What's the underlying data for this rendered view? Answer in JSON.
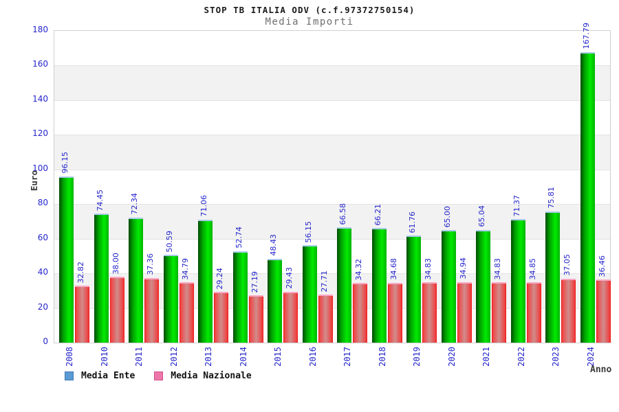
{
  "title": "STOP TB ITALIA ODV (c.f.97372750154)",
  "subtitle": "Media Importi",
  "chart_data": {
    "type": "bar",
    "title": "STOP TB ITALIA ODV (c.f.97372750154)",
    "subtitle": "Media Importi",
    "xlabel": "Anno",
    "ylabel": "Euro",
    "ylim": [
      0,
      180
    ],
    "y_ticks": [
      180,
      160,
      140,
      120,
      100,
      80,
      60,
      40,
      20,
      0
    ],
    "grid": "alternating-horizontal-bands-every-20",
    "legend_position": "bottom-left",
    "categories": [
      "2008",
      "2010",
      "2011",
      "2012",
      "2013",
      "2014",
      "2015",
      "2016",
      "2017",
      "2018",
      "2019",
      "2020",
      "2021",
      "2022",
      "2023",
      "2024"
    ],
    "series": [
      {
        "name": "Media Ente",
        "bar_color": "green-gradient",
        "legend_swatch_color": "#5b9bd5",
        "values": [
          96.15,
          74.45,
          72.34,
          50.59,
          71.06,
          52.74,
          48.43,
          56.15,
          66.58,
          66.21,
          61.76,
          65.0,
          65.04,
          71.37,
          75.81,
          167.79
        ]
      },
      {
        "name": "Media Nazionale",
        "bar_color": "red-gradient",
        "legend_swatch_color": "#ee77aa",
        "values": [
          32.82,
          38.0,
          37.36,
          34.79,
          29.24,
          27.19,
          29.43,
          27.71,
          34.32,
          34.68,
          34.83,
          34.94,
          34.83,
          34.85,
          37.05,
          36.46
        ]
      }
    ]
  },
  "colors": {
    "tick_label_blue": "#2424cc",
    "band_gray": "#f2f2f2",
    "plot_border": "#cfcfcf",
    "bar_green_dark": "#004b00",
    "bar_green_bright": "#00ea00",
    "bar_green_cap": "#a9cbe9",
    "bar_red": "#ea1212",
    "bar_red_center": "#d18c8c",
    "bar_red_cap": "#f9a6c4",
    "title_color": "#1a1a1a",
    "subtitle_color": "#6e6e6e",
    "axis_title_color": "#3a3a3a"
  }
}
